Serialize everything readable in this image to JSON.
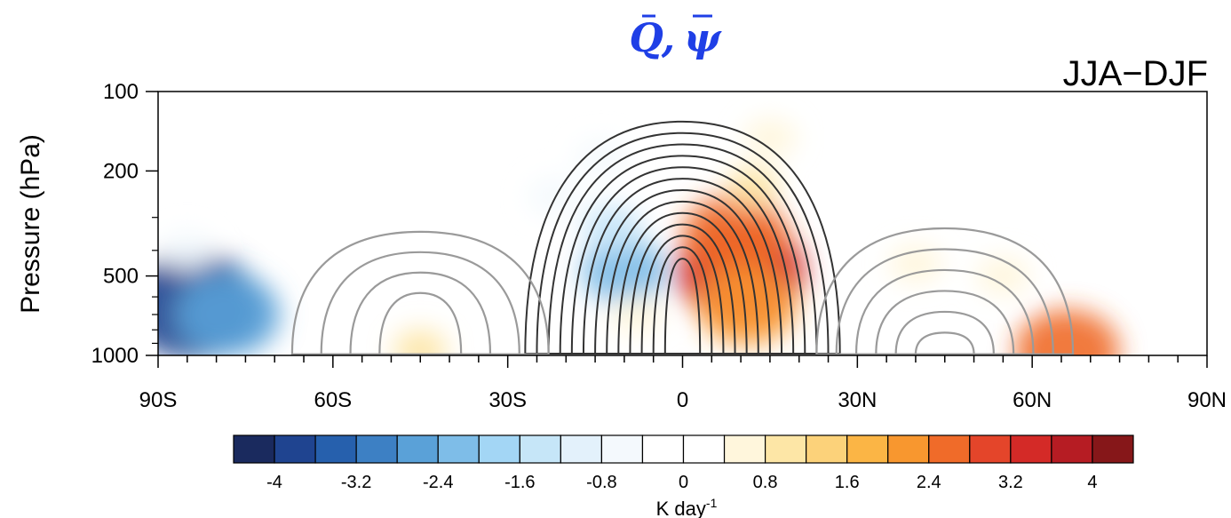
{
  "figure": {
    "title_q": "Q",
    "title_sep": ",",
    "title_psi": "ψ",
    "season_label": "JJA−DJF",
    "title_color": "#1f3fe6"
  },
  "chart_data": {
    "type": "heatmap",
    "title": "Q̄, ψ̄",
    "subtitle": "JJA−DJF",
    "xlabel": "",
    "ylabel": "Pressure (hPa)",
    "xlim": [
      -90,
      90
    ],
    "xticks": [
      -90,
      -60,
      -30,
      0,
      30,
      60,
      90
    ],
    "xticklabels": [
      "90S",
      "60S",
      "30S",
      "0",
      "30N",
      "60N",
      "90N"
    ],
    "x_minor_step": 5,
    "ylim": [
      1000,
      100
    ],
    "y_scale": "log",
    "yticks": [
      100,
      200,
      500,
      1000
    ],
    "yticklabels": [
      "100",
      "200",
      "500",
      "1000"
    ],
    "colorbar": {
      "label": "K day",
      "label_superscript": "-1",
      "levels": [
        -4,
        -3.6,
        -3.2,
        -2.8,
        -2.4,
        -2,
        -1.6,
        -1.2,
        -0.8,
        -0.4,
        0,
        0.4,
        0.8,
        1.2,
        1.6,
        2,
        2.4,
        2.8,
        3.2,
        3.6,
        4
      ],
      "ticks": [
        -4,
        -3.2,
        -2.4,
        -1.6,
        -0.8,
        0,
        0.8,
        1.6,
        2.4,
        3.2,
        4
      ],
      "ticklabels": [
        "-4",
        "-3.2",
        "-2.4",
        "-1.6",
        "-0.8",
        "0",
        "0.8",
        "1.6",
        "2.4",
        "3.2",
        "4"
      ],
      "colors": [
        "#1a2a5e",
        "#1f4490",
        "#2660ad",
        "#3d80c4",
        "#5aa1d8",
        "#7ebde8",
        "#a3d6f5",
        "#c6e6f8",
        "#e3f1fb",
        "#f4f9fd",
        "#ffffff",
        "#ffffff",
        "#fff6dc",
        "#fde6a6",
        "#fcd27a",
        "#fbb545",
        "#f8972f",
        "#f06b29",
        "#e4452a",
        "#d42a27",
        "#b61c23",
        "#861719"
      ]
    },
    "shading": [
      {
        "lat": 10,
        "p": 480,
        "value": 3.4
      },
      {
        "lat": 9,
        "p": 350,
        "value": 2.6
      },
      {
        "lat": 11,
        "p": 650,
        "value": 2.4
      },
      {
        "lat": 12,
        "p": 230,
        "value": 1.0
      },
      {
        "lat": 15,
        "p": 150,
        "value": 0.6
      },
      {
        "lat": -10,
        "p": 480,
        "value": -2.0
      },
      {
        "lat": -12,
        "p": 330,
        "value": -1.2
      },
      {
        "lat": -14,
        "p": 180,
        "value": -0.6
      },
      {
        "lat": -22,
        "p": 250,
        "value": -0.5
      },
      {
        "lat": 40,
        "p": 450,
        "value": 0.5
      },
      {
        "lat": 55,
        "p": 500,
        "value": 0.8
      },
      {
        "lat": 66,
        "p": 960,
        "value": 2.6
      },
      {
        "lat": -84,
        "p": 650,
        "value": -3.6
      },
      {
        "lat": -78,
        "p": 700,
        "value": -2.6
      },
      {
        "lat": -85,
        "p": 400,
        "value": -0.5
      },
      {
        "lat": -45,
        "p": 960,
        "value": 1.0
      },
      {
        "lat": -8,
        "p": 700,
        "value": 0.8
      }
    ],
    "contours_positive": {
      "color": "#333333",
      "center_lat": 0,
      "levels": 13,
      "outer_lat_range": [
        -27,
        27
      ],
      "top_pressure": [
        130,
        430
      ]
    },
    "contours_negative": [
      {
        "color": "#9a9a9a",
        "center_lat": -45,
        "lat_halfwidth": [
          22,
          7
        ],
        "top_pressure": [
          340,
          580
        ],
        "count": 4
      },
      {
        "color": "#9a9a9a",
        "center_lat": 45,
        "lat_halfwidth": [
          22,
          5
        ],
        "top_pressure": [
          330,
          820
        ],
        "count": 6
      }
    ]
  }
}
